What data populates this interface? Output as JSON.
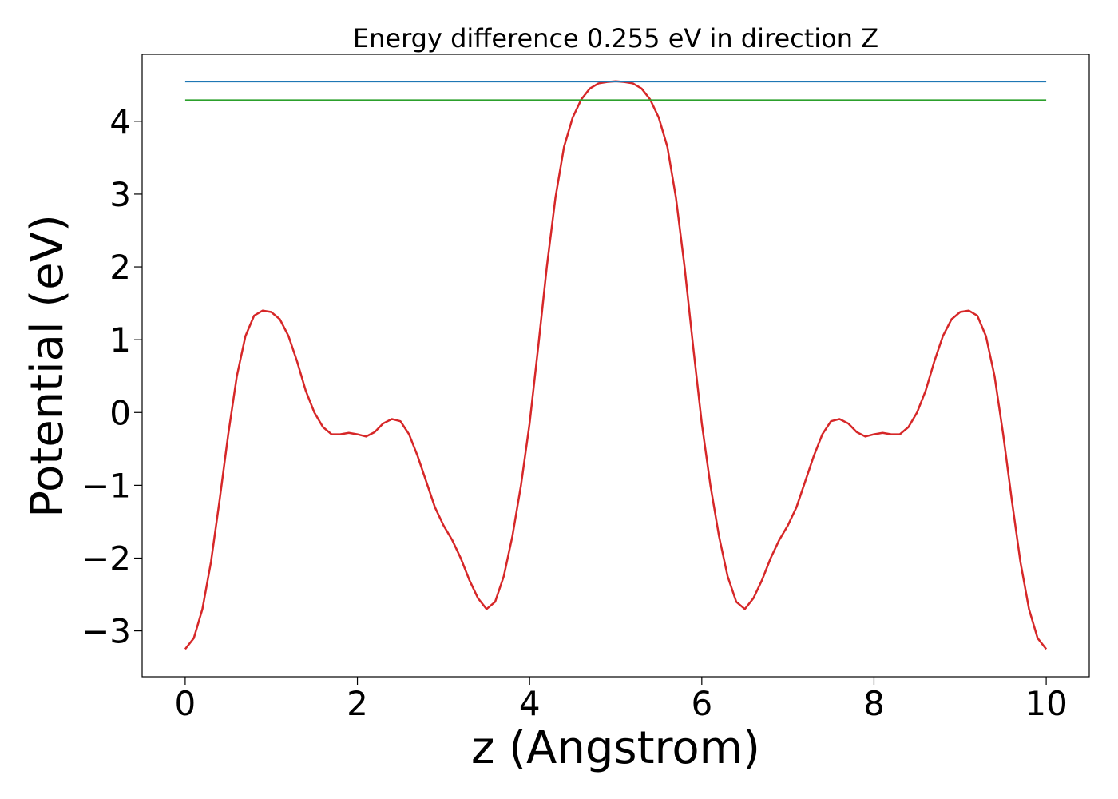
{
  "chart_data": {
    "type": "line",
    "title": "Energy difference 0.255 eV in direction Z",
    "xlabel": "z (Angstrom)",
    "ylabel": "Potential (eV)",
    "xlim": [
      -0.5,
      10.5
    ],
    "ylim": [
      -3.63,
      4.92
    ],
    "xticks": [
      0,
      2,
      4,
      6,
      8,
      10
    ],
    "yticks": [
      -3,
      -2,
      -1,
      0,
      1,
      2,
      3,
      4
    ],
    "grid": false,
    "series": [
      {
        "color": "#d62728",
        "x": [
          0,
          0.1,
          0.2,
          0.3,
          0.4,
          0.5,
          0.6,
          0.7,
          0.8,
          0.9,
          1.0,
          1.1,
          1.2,
          1.3,
          1.4,
          1.5,
          1.6,
          1.7,
          1.8,
          1.9,
          2.0,
          2.1,
          2.2,
          2.3,
          2.4,
          2.5,
          2.6,
          2.7,
          2.8,
          2.9,
          3.0,
          3.1,
          3.2,
          3.3,
          3.4,
          3.5,
          3.6,
          3.7,
          3.8,
          3.9,
          4.0,
          4.1,
          4.2,
          4.3,
          4.4,
          4.5,
          4.6,
          4.7,
          4.8,
          4.9,
          5.0,
          5.1,
          5.2,
          5.3,
          5.4,
          5.5,
          5.6,
          5.7,
          5.8,
          5.9,
          6.0,
          6.1,
          6.2,
          6.3,
          6.4,
          6.5,
          6.6,
          6.7,
          6.8,
          6.9,
          7.0,
          7.1,
          7.2,
          7.3,
          7.4,
          7.5,
          7.6,
          7.7,
          7.8,
          7.9,
          8.0,
          8.1,
          8.2,
          8.3,
          8.4,
          8.5,
          8.6,
          8.7,
          8.8,
          8.9,
          9.0,
          9.1,
          9.2,
          9.3,
          9.4,
          9.5,
          9.6,
          9.7,
          9.8,
          9.9,
          10.0
        ],
        "y": [
          -3.25,
          -3.1,
          -2.7,
          -2.05,
          -1.2,
          -0.3,
          0.5,
          1.05,
          1.33,
          1.4,
          1.38,
          1.28,
          1.05,
          0.7,
          0.3,
          0.0,
          -0.2,
          -0.3,
          -0.3,
          -0.28,
          -0.3,
          -0.33,
          -0.27,
          -0.15,
          -0.09,
          -0.12,
          -0.3,
          -0.6,
          -0.95,
          -1.3,
          -1.55,
          -1.75,
          -2.0,
          -2.3,
          -2.55,
          -2.7,
          -2.6,
          -2.25,
          -1.7,
          -1.0,
          -0.15,
          0.9,
          2.0,
          2.95,
          3.65,
          4.05,
          4.3,
          4.45,
          4.52,
          4.54,
          4.55,
          4.54,
          4.52,
          4.45,
          4.3,
          4.05,
          3.65,
          2.95,
          2.0,
          0.9,
          -0.15,
          -1.0,
          -1.7,
          -2.25,
          -2.6,
          -2.7,
          -2.55,
          -2.3,
          -2.0,
          -1.75,
          -1.55,
          -1.3,
          -0.95,
          -0.6,
          -0.3,
          -0.12,
          -0.09,
          -0.15,
          -0.27,
          -0.33,
          -0.3,
          -0.28,
          -0.3,
          -0.3,
          -0.2,
          0.0,
          0.3,
          0.7,
          1.05,
          1.28,
          1.38,
          1.4,
          1.33,
          1.05,
          0.5,
          -0.3,
          -1.2,
          -2.05,
          -2.7,
          -3.1,
          -3.25
        ]
      },
      {
        "color": "#1f77b4",
        "x": [
          0,
          10
        ],
        "y": [
          4.545,
          4.545
        ]
      },
      {
        "color": "#2ca02c",
        "x": [
          0,
          10
        ],
        "y": [
          4.29,
          4.29
        ]
      }
    ]
  }
}
